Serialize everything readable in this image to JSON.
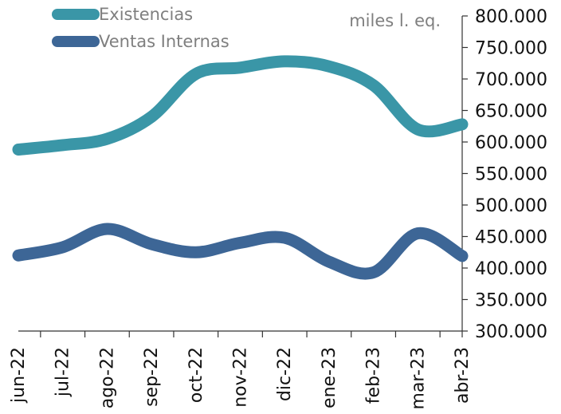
{
  "chart_data": {
    "type": "line",
    "unit_label": "miles l. eq.",
    "categories": [
      "jun-22",
      "jul-22",
      "ago-22",
      "sep-22",
      "oct-22",
      "nov-22",
      "dic-22",
      "ene-23",
      "feb-23",
      "mar-23",
      "abr-23"
    ],
    "series": [
      {
        "name": "Existencias",
        "color": "#3a96a7",
        "values": [
          588000,
          595000,
          605000,
          640000,
          708000,
          718000,
          728000,
          720000,
          690000,
          620000,
          628000
        ]
      },
      {
        "name": "Ventas Internas",
        "color": "#3d6696",
        "values": [
          420000,
          433000,
          462000,
          438000,
          425000,
          440000,
          448000,
          410000,
          393000,
          455000,
          419000
        ]
      }
    ],
    "y_axis": {
      "min": 300000,
      "max": 800000,
      "step": 50000,
      "position": "right",
      "tick_labels": [
        "300.000",
        "350.000",
        "400.000",
        "450.000",
        "500.000",
        "550.000",
        "600.000",
        "650.000",
        "700.000",
        "750.000",
        "800.000"
      ]
    },
    "grid": false,
    "legend_position": "top-left"
  }
}
